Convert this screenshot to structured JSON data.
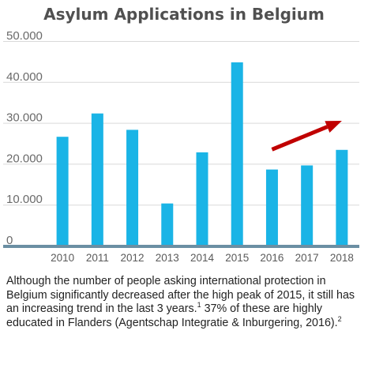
{
  "chart_data": {
    "type": "bar",
    "title": "Asylum Applications in Belgium",
    "categories": [
      "2010",
      "2011",
      "2012",
      "2013",
      "2014",
      "2015",
      "2016",
      "2017",
      "2018"
    ],
    "values": [
      26600,
      32300,
      28300,
      10300,
      22800,
      44800,
      18600,
      19600,
      23400
    ],
    "ylim": [
      0,
      50000
    ],
    "yticks": [
      0,
      10000,
      20000,
      30000,
      40000,
      50000
    ],
    "ytick_labels": [
      "0",
      "10.000",
      "20.000",
      "30.000",
      "40.000",
      "50.000"
    ],
    "grid": true,
    "colors": {
      "bar": "#1ab4e6",
      "baseline": "#6b8fa3",
      "grid": "#d9d9d9",
      "arrow": "#c00000"
    },
    "annotations": [
      {
        "type": "arrow",
        "from": {
          "x": "2016",
          "y": 23500
        },
        "to": {
          "x": "2018",
          "y": 30500
        }
      }
    ]
  },
  "caption": {
    "text": "Although the number of people asking international protection in Belgium significantly decreased after the high peak of 2015, it still has an increasing trend in the last 3 years.",
    "footnote_1": "1",
    "text_2": " 37% of these are highly educated in Flanders (Agentschap Integratie & Inburgering, 2016).",
    "footnote_2": "2"
  }
}
